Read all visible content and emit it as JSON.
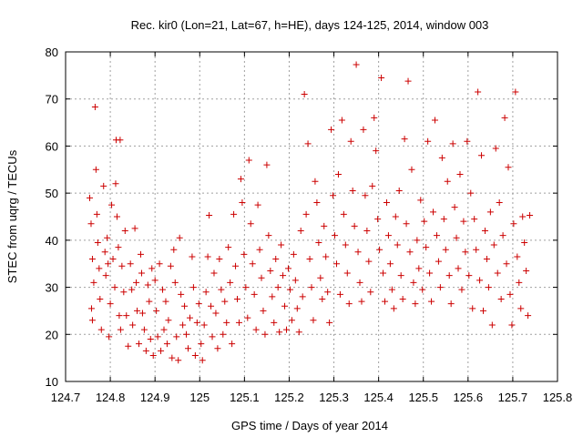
{
  "chart_data": {
    "type": "scatter",
    "title": "Rec. kir0 (Lon=21, Lat=67, h=HE), days 124-125, 2014, window 003",
    "xlabel": "GPS time / Days of year 2014",
    "ylabel": "STEC from uqrg / TECUs",
    "xlim": [
      124.7,
      125.8
    ],
    "ylim": [
      10,
      80
    ],
    "xticks": [
      "124.7",
      "124.8",
      "124.9",
      "125",
      "125.1",
      "125.2",
      "125.3",
      "125.4",
      "125.5",
      "125.6",
      "125.7",
      "125.8"
    ],
    "yticks": [
      "10",
      "20",
      "30",
      "40",
      "50",
      "60",
      "70",
      "80"
    ],
    "grid": true,
    "marker": "plus",
    "color": "#cc0000",
    "series": [
      {
        "points": [
          [
            124.754,
            49.0
          ],
          [
            124.757,
            43.5
          ],
          [
            124.76,
            36.0
          ],
          [
            124.763,
            31.0
          ],
          [
            124.758,
            25.5
          ],
          [
            124.76,
            23.0
          ],
          [
            124.766,
            68.3
          ],
          [
            124.768,
            55.0
          ],
          [
            124.77,
            45.5
          ],
          [
            124.772,
            39.5
          ],
          [
            124.775,
            34.0
          ],
          [
            124.777,
            27.5
          ],
          [
            124.78,
            21.0
          ],
          [
            124.785,
            51.5
          ],
          [
            124.788,
            37.5
          ],
          [
            124.79,
            32.5
          ],
          [
            124.793,
            40.5
          ],
          [
            124.795,
            35.0
          ],
          [
            124.797,
            19.5
          ],
          [
            124.8,
            26.5
          ],
          [
            124.803,
            47.5
          ],
          [
            124.806,
            36.0
          ],
          [
            124.81,
            30.0
          ],
          [
            124.812,
            52.0
          ],
          [
            124.815,
            45.0
          ],
          [
            124.813,
            61.3
          ],
          [
            124.822,
            61.3
          ],
          [
            124.818,
            38.5
          ],
          [
            124.82,
            24.0
          ],
          [
            124.823,
            21.0
          ],
          [
            124.826,
            34.5
          ],
          [
            124.83,
            29.0
          ],
          [
            124.833,
            42.0
          ],
          [
            124.836,
            24.0
          ],
          [
            124.84,
            17.5
          ],
          [
            124.845,
            35.0
          ],
          [
            124.848,
            29.5
          ],
          [
            124.85,
            22.0
          ],
          [
            124.855,
            42.5
          ],
          [
            124.858,
            31.0
          ],
          [
            124.86,
            25.0
          ],
          [
            124.864,
            18.0
          ],
          [
            124.868,
            37.0
          ],
          [
            124.87,
            33.0
          ],
          [
            124.872,
            24.5
          ],
          [
            124.876,
            21.0
          ],
          [
            124.88,
            16.5
          ],
          [
            124.884,
            30.5
          ],
          [
            124.887,
            27.0
          ],
          [
            124.89,
            19.0
          ],
          [
            124.893,
            34.0
          ],
          [
            124.896,
            15.5
          ],
          [
            124.9,
            31.5
          ],
          [
            124.903,
            25.0
          ],
          [
            124.906,
            19.5
          ],
          [
            124.91,
            35.0
          ],
          [
            124.913,
            16.5
          ],
          [
            124.917,
            29.5
          ],
          [
            124.92,
            21.0
          ],
          [
            124.924,
            27.0
          ],
          [
            124.927,
            18.0
          ],
          [
            124.93,
            23.0
          ],
          [
            124.935,
            34.5
          ],
          [
            124.938,
            15.0
          ],
          [
            124.942,
            38.0
          ],
          [
            124.945,
            31.0
          ],
          [
            124.948,
            19.5
          ],
          [
            124.952,
            14.5
          ],
          [
            124.955,
            40.5
          ],
          [
            124.958,
            28.5
          ],
          [
            124.962,
            22.0
          ],
          [
            124.966,
            26.0
          ],
          [
            124.97,
            20.0
          ],
          [
            124.974,
            17.0
          ],
          [
            124.978,
            23.5
          ],
          [
            124.983,
            36.5
          ],
          [
            124.986,
            30.0
          ],
          [
            124.99,
            15.5
          ],
          [
            124.994,
            22.5
          ],
          [
            124.998,
            26.5
          ],
          [
            125.003,
            18.0
          ],
          [
            125.006,
            14.5
          ],
          [
            125.01,
            22.0
          ],
          [
            125.014,
            29.0
          ],
          [
            125.018,
            36.5
          ],
          [
            125.021,
            45.3
          ],
          [
            125.025,
            26.0
          ],
          [
            125.028,
            19.5
          ],
          [
            125.032,
            33.0
          ],
          [
            125.036,
            24.5
          ],
          [
            125.04,
            17.0
          ],
          [
            125.044,
            36.0
          ],
          [
            125.048,
            29.5
          ],
          [
            125.052,
            20.0
          ],
          [
            125.056,
            27.0
          ],
          [
            125.06,
            22.5
          ],
          [
            125.064,
            38.5
          ],
          [
            125.068,
            31.0
          ],
          [
            125.072,
            18.0
          ],
          [
            125.076,
            45.5
          ],
          [
            125.08,
            34.5
          ],
          [
            125.084,
            27.5
          ],
          [
            125.088,
            22.5
          ],
          [
            125.092,
            53.0
          ],
          [
            125.095,
            48.0
          ],
          [
            125.099,
            37.0
          ],
          [
            125.103,
            30.0
          ],
          [
            125.107,
            23.5
          ],
          [
            125.11,
            57.0
          ],
          [
            125.114,
            43.5
          ],
          [
            125.118,
            35.0
          ],
          [
            125.122,
            28.5
          ],
          [
            125.126,
            21.0
          ],
          [
            125.13,
            47.5
          ],
          [
            125.134,
            38.0
          ],
          [
            125.138,
            32.0
          ],
          [
            125.142,
            25.0
          ],
          [
            125.146,
            20.0
          ],
          [
            125.15,
            56.0
          ],
          [
            125.154,
            41.0
          ],
          [
            125.158,
            33.5
          ],
          [
            125.162,
            28.0
          ],
          [
            125.166,
            22.5
          ],
          [
            125.17,
            36.0
          ],
          [
            125.175,
            30.0
          ],
          [
            125.178,
            20.5
          ],
          [
            125.182,
            39.0
          ],
          [
            125.186,
            32.5
          ],
          [
            125.19,
            26.0
          ],
          [
            125.194,
            21.0
          ],
          [
            125.198,
            34.0
          ],
          [
            125.202,
            29.5
          ],
          [
            125.206,
            23.0
          ],
          [
            125.21,
            37.0
          ],
          [
            125.214,
            31.5
          ],
          [
            125.218,
            25.5
          ],
          [
            125.222,
            20.5
          ],
          [
            125.226,
            42.0
          ],
          [
            125.23,
            28.0
          ],
          [
            125.234,
            71.0
          ],
          [
            125.238,
            45.5
          ],
          [
            125.242,
            60.5
          ],
          [
            125.246,
            36.0
          ],
          [
            125.25,
            30.0
          ],
          [
            125.254,
            23.0
          ],
          [
            125.258,
            52.5
          ],
          [
            125.262,
            48.0
          ],
          [
            125.266,
            39.5
          ],
          [
            125.27,
            32.0
          ],
          [
            125.274,
            27.5
          ],
          [
            125.278,
            43.0
          ],
          [
            125.282,
            36.5
          ],
          [
            125.286,
            29.0
          ],
          [
            125.29,
            22.5
          ],
          [
            125.294,
            63.5
          ],
          [
            125.298,
            49.5
          ],
          [
            125.302,
            41.0
          ],
          [
            125.306,
            35.0
          ],
          [
            125.31,
            54.0
          ],
          [
            125.314,
            28.5
          ],
          [
            125.318,
            65.5
          ],
          [
            125.322,
            45.5
          ],
          [
            125.326,
            39.0
          ],
          [
            125.33,
            33.0
          ],
          [
            125.334,
            26.5
          ],
          [
            125.338,
            61.0
          ],
          [
            125.342,
            50.5
          ],
          [
            125.346,
            43.0
          ],
          [
            125.35,
            77.3
          ],
          [
            125.354,
            37.5
          ],
          [
            125.358,
            31.0
          ],
          [
            125.362,
            27.0
          ],
          [
            125.366,
            63.5
          ],
          [
            125.37,
            49.5
          ],
          [
            125.374,
            42.0
          ],
          [
            125.378,
            35.5
          ],
          [
            125.382,
            29.0
          ],
          [
            125.386,
            51.5
          ],
          [
            125.39,
            66.0
          ],
          [
            125.394,
            59.0
          ],
          [
            125.398,
            44.5
          ],
          [
            125.402,
            38.0
          ],
          [
            125.406,
            74.5
          ],
          [
            125.41,
            33.0
          ],
          [
            125.414,
            27.0
          ],
          [
            125.418,
            48.0
          ],
          [
            125.422,
            41.0
          ],
          [
            125.426,
            35.0
          ],
          [
            125.43,
            29.5
          ],
          [
            125.434,
            25.5
          ],
          [
            125.438,
            45.0
          ],
          [
            125.442,
            39.0
          ],
          [
            125.446,
            50.5
          ],
          [
            125.45,
            32.5
          ],
          [
            125.454,
            27.5
          ],
          [
            125.458,
            61.5
          ],
          [
            125.462,
            43.5
          ],
          [
            125.466,
            73.8
          ],
          [
            125.47,
            37.5
          ],
          [
            125.474,
            55.0
          ],
          [
            125.478,
            31.0
          ],
          [
            125.482,
            26.5
          ],
          [
            125.486,
            40.0
          ],
          [
            125.49,
            34.0
          ],
          [
            125.494,
            48.5
          ],
          [
            125.498,
            29.5
          ],
          [
            125.502,
            44.0
          ],
          [
            125.506,
            38.5
          ],
          [
            125.51,
            61.0
          ],
          [
            125.514,
            33.0
          ],
          [
            125.518,
            27.0
          ],
          [
            125.522,
            46.0
          ],
          [
            125.526,
            65.5
          ],
          [
            125.53,
            41.0
          ],
          [
            125.534,
            35.5
          ],
          [
            125.538,
            30.0
          ],
          [
            125.542,
            57.5
          ],
          [
            125.546,
            44.5
          ],
          [
            125.55,
            38.0
          ],
          [
            125.554,
            52.5
          ],
          [
            125.558,
            32.5
          ],
          [
            125.562,
            26.5
          ],
          [
            125.566,
            60.5
          ],
          [
            125.57,
            47.0
          ],
          [
            125.574,
            40.5
          ],
          [
            125.578,
            34.0
          ],
          [
            125.582,
            54.0
          ],
          [
            125.586,
            29.5
          ],
          [
            125.59,
            44.0
          ],
          [
            125.594,
            37.5
          ],
          [
            125.598,
            61.0
          ],
          [
            125.602,
            32.5
          ],
          [
            125.606,
            50.0
          ],
          [
            125.61,
            25.5
          ],
          [
            125.614,
            44.5
          ],
          [
            125.618,
            38.0
          ],
          [
            125.622,
            71.5
          ],
          [
            125.626,
            31.5
          ],
          [
            125.63,
            58.0
          ],
          [
            125.634,
            25.0
          ],
          [
            125.638,
            42.0
          ],
          [
            125.642,
            36.0
          ],
          [
            125.646,
            30.0
          ],
          [
            125.65,
            46.0
          ],
          [
            125.654,
            22.0
          ],
          [
            125.658,
            39.0
          ],
          [
            125.662,
            59.5
          ],
          [
            125.666,
            33.0
          ],
          [
            125.67,
            48.0
          ],
          [
            125.674,
            27.5
          ],
          [
            125.678,
            41.0
          ],
          [
            125.682,
            66.0
          ],
          [
            125.686,
            35.0
          ],
          [
            125.69,
            55.5
          ],
          [
            125.694,
            28.5
          ],
          [
            125.698,
            22.0
          ],
          [
            125.702,
            43.5
          ],
          [
            125.706,
            71.5
          ],
          [
            125.71,
            36.5
          ],
          [
            125.714,
            31.0
          ],
          [
            125.718,
            25.5
          ],
          [
            125.722,
            45.0
          ],
          [
            125.726,
            39.5
          ],
          [
            125.73,
            33.5
          ],
          [
            125.734,
            24.0
          ],
          [
            125.738,
            45.3
          ]
        ]
      }
    ]
  }
}
